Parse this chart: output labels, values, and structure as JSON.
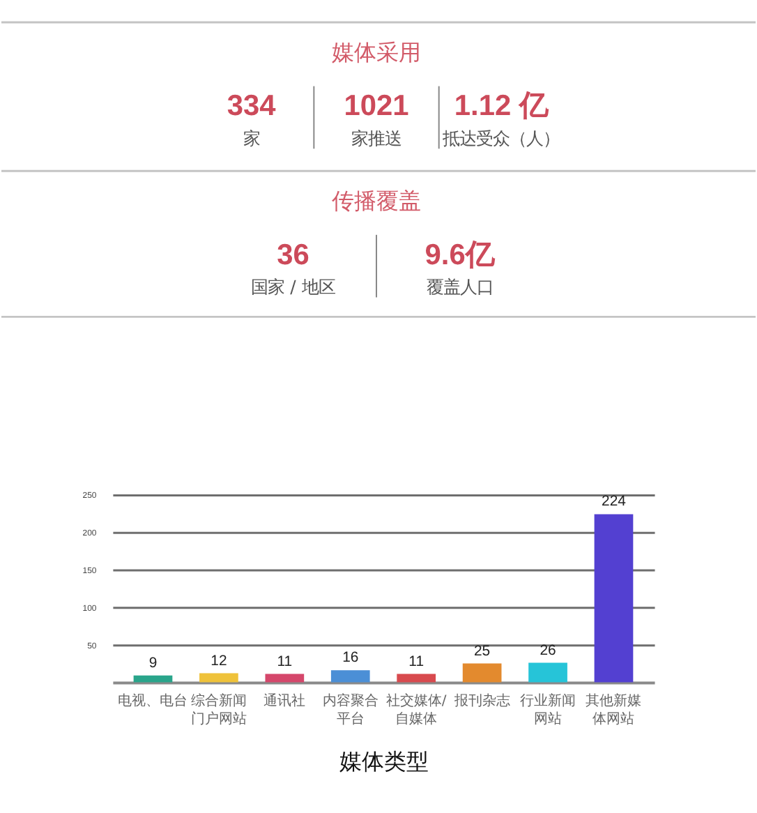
{
  "chart_data": [
    {
      "type": "other",
      "title": "媒体采用",
      "annotations": [
        "334",
        "家",
        "1021",
        "家推送",
        "1.12 亿",
        "抵达受众（人）"
      ]
    },
    {
      "type": "other",
      "title": "传播覆盖",
      "annotations": [
        "36",
        "国家 / 地区",
        "9.6亿",
        "覆盖人口"
      ]
    },
    {
      "type": "bar",
      "xlabel": "媒体类型",
      "categories": [
        "电视、电台",
        "综合新闻门户网站",
        "通讯社",
        "内容聚合平台",
        "社交媒体/自媒体",
        "报刊杂志",
        "行业新闻网站",
        "其他新媒体网站"
      ],
      "values": [
        9,
        12,
        11,
        16,
        11,
        25,
        26,
        224
      ],
      "colors": [
        "#2aa58b",
        "#efc23a",
        "#d5476b",
        "#4b8fd6",
        "#d84a4e",
        "#e38a2e",
        "#26c4d8",
        "#5340d1"
      ],
      "ylim": [
        0,
        250
      ],
      "yticks": [
        50,
        100,
        150,
        200,
        250
      ],
      "grid": "y",
      "data_labels": true
    }
  ]
}
